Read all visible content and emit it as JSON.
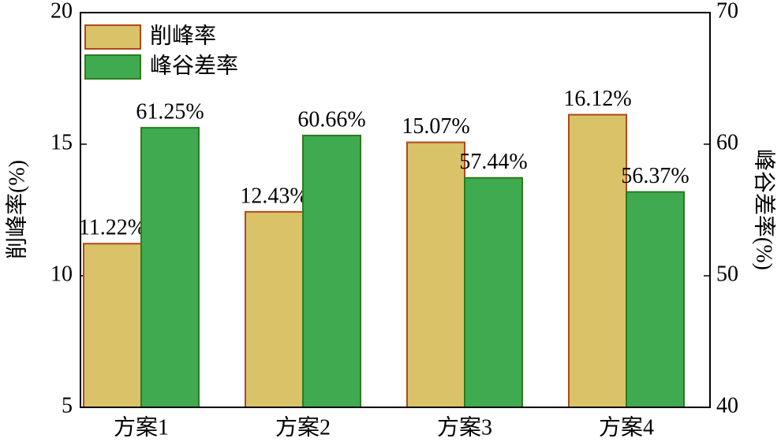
{
  "chart_data": {
    "type": "bar",
    "categories": [
      "方案1",
      "方案2",
      "方案3",
      "方案4"
    ],
    "series": [
      {
        "name": "削峰率",
        "color": "#d9c268",
        "edgecolor": "#b0481c",
        "values": [
          11.22,
          12.43,
          15.07,
          16.12
        ],
        "value_labels": [
          "11.22%",
          "12.43%",
          "15.07%",
          "16.12%"
        ]
      },
      {
        "name": "峰谷差率",
        "color": "#3faa50",
        "edgecolor": "#2d7a1f",
        "axis": "y2",
        "values": [
          61.25,
          60.66,
          57.44,
          56.37
        ],
        "value_labels": [
          "61.25%",
          "60.66%",
          "57.44%",
          "56.37%"
        ]
      }
    ],
    "ylabel": "削峰率(%)",
    "y2label": "峰谷差率(%)",
    "ylim": [
      5,
      20
    ],
    "yticks": [
      5,
      10,
      15,
      20
    ],
    "y2lim": [
      40,
      70
    ],
    "y2ticks": [
      40,
      50,
      60,
      70
    ],
    "legend": "upper left"
  }
}
